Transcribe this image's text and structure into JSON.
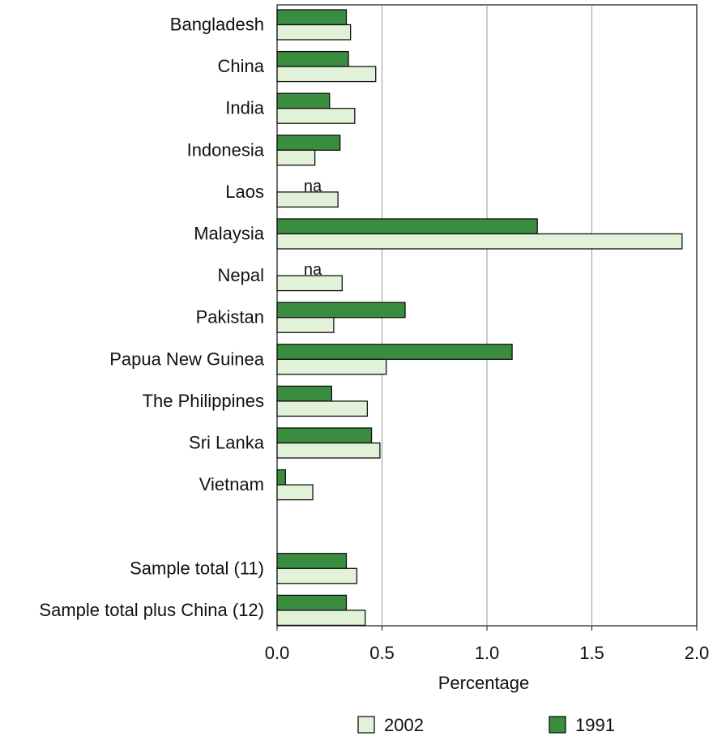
{
  "chart_data": {
    "type": "bar",
    "orientation": "horizontal",
    "categories": [
      "Bangladesh",
      "China",
      "India",
      "Indonesia",
      "Laos",
      "Malaysia",
      "Nepal",
      "Pakistan",
      "Papua New Guinea",
      "The Philippines",
      "Sri Lanka",
      "Vietnam",
      "",
      "Sample total (11)",
      "Sample total plus China (12)"
    ],
    "series": [
      {
        "name": "1991",
        "color": "#3a8c3f",
        "values": [
          0.33,
          0.34,
          0.25,
          0.3,
          null,
          1.24,
          null,
          0.61,
          1.12,
          0.26,
          0.45,
          0.04,
          null,
          0.33,
          0.33
        ]
      },
      {
        "name": "2002",
        "color": "#e2f2d8",
        "values": [
          0.35,
          0.47,
          0.37,
          0.18,
          0.29,
          1.93,
          0.31,
          0.27,
          0.52,
          0.43,
          0.49,
          0.17,
          null,
          0.38,
          0.42
        ]
      }
    ],
    "missing_label": "na",
    "xlabel": "Percentage",
    "xlim": [
      0,
      2.0
    ],
    "xticks": [
      "0.0",
      "0.5",
      "1.0",
      "1.5",
      "2.0"
    ],
    "xtick_values": [
      0,
      0.5,
      1.0,
      1.5,
      2.0
    ],
    "grid": "vertical",
    "legend": {
      "placement": "bottom",
      "order": [
        "2002",
        "1991"
      ]
    }
  }
}
